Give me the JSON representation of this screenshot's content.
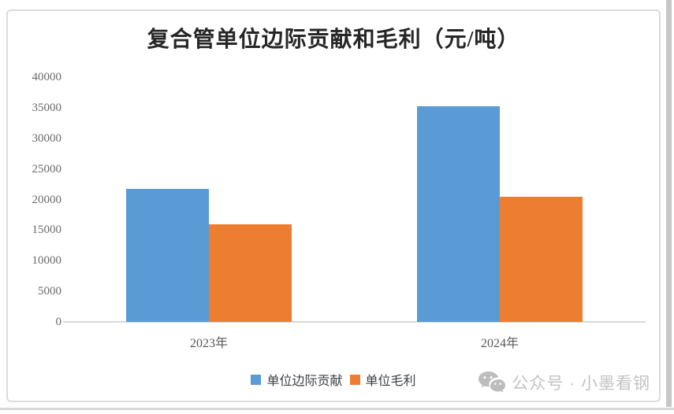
{
  "chart_data": {
    "type": "bar",
    "title": "复合管单位边际贡献和毛利（元/吨）",
    "categories": [
      "2023年",
      "2024年"
    ],
    "series": [
      {
        "name": "单位边际贡献",
        "color": "#5B9BD5",
        "values": [
          21800,
          35300
        ]
      },
      {
        "name": "单位毛利",
        "color": "#ED7D31",
        "values": [
          15900,
          20400
        ]
      }
    ],
    "ylim": [
      0,
      40000
    ],
    "ytick_step": 5000,
    "yticks": [
      0,
      5000,
      10000,
      15000,
      20000,
      25000,
      30000,
      35000,
      40000
    ],
    "grid": false,
    "legend_position": "bottom",
    "axis_color": "#d9d9d9",
    "tick_label_color": "#6b6b6b"
  },
  "watermark": {
    "icon": "wechat-icon",
    "text": "公众号 · 小墨看钢"
  }
}
